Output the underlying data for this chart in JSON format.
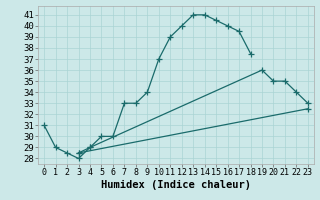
{
  "xlabel": "Humidex (Indice chaleur)",
  "bg_color": "#cce8e8",
  "line_color": "#1a6b6b",
  "xlim": [
    -0.5,
    23.5
  ],
  "ylim": [
    27.5,
    41.8
  ],
  "yticks": [
    28,
    29,
    30,
    31,
    32,
    33,
    34,
    35,
    36,
    37,
    38,
    39,
    40,
    41
  ],
  "xticks": [
    0,
    1,
    2,
    3,
    4,
    5,
    6,
    7,
    8,
    9,
    10,
    11,
    12,
    13,
    14,
    15,
    16,
    17,
    18,
    19,
    20,
    21,
    22,
    23
  ],
  "curve1_x": [
    0,
    1,
    2,
    3,
    4,
    5,
    6,
    7,
    8,
    9,
    10,
    11,
    12,
    13,
    14,
    15,
    16,
    17,
    18
  ],
  "curve1_y": [
    31,
    29,
    28.5,
    28,
    29,
    30,
    30,
    33,
    33,
    34,
    37,
    39,
    40,
    41,
    41,
    40.5,
    40,
    39.5,
    37.5
  ],
  "curve2_x": [
    3,
    4,
    19,
    20,
    21,
    22,
    23
  ],
  "curve2_y": [
    28.5,
    29,
    36,
    35,
    35,
    34,
    33
  ],
  "curve3_x": [
    3,
    23
  ],
  "curve3_y": [
    28.5,
    32.5
  ],
  "grid_color": "#aad4d4",
  "fontsize_tick": 6.5,
  "fontsize_label": 7.5
}
